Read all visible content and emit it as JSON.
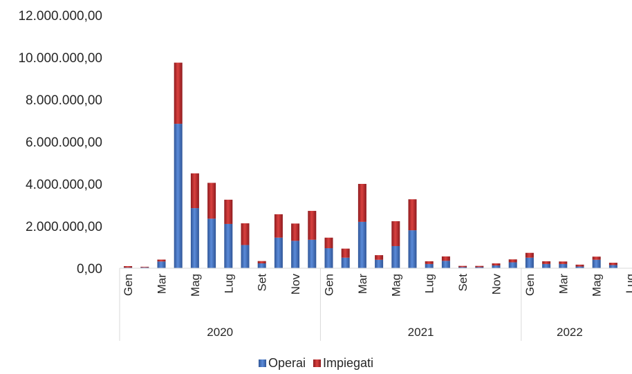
{
  "colors": {
    "operai": "#4472C4",
    "impiegati": "#C0272D"
  },
  "chart_data": {
    "type": "bar",
    "stacked": true,
    "title": "",
    "xlabel": "",
    "ylabel": "",
    "ylim": [
      0,
      12000000
    ],
    "yticks": [
      "0,00",
      "2.000.000,00",
      "4.000.000,00",
      "6.000.000,00",
      "8.000.000,00",
      "10.000.000,00",
      "12.000.000,00"
    ],
    "grid": false,
    "legend": "bottom",
    "months": [
      "Gen",
      "Feb",
      "Mar",
      "Apr",
      "Mag",
      "Giu",
      "Lug",
      "Ago",
      "Set",
      "Ott",
      "Nov",
      "Dic",
      "Gen",
      "Feb",
      "Mar",
      "Apr",
      "Mag",
      "Giu",
      "Lug",
      "Ago",
      "Set",
      "Ott",
      "Nov",
      "Dic",
      "Gen",
      "Feb",
      "Mar",
      "Apr",
      "Mag",
      "Giu",
      "Lug"
    ],
    "month_labels_shown": [
      "Gen",
      "",
      "Mar",
      "",
      "Mag",
      "",
      "Lug",
      "",
      "Set",
      "",
      "Nov",
      "",
      "Gen",
      "",
      "Mar",
      "",
      "Mag",
      "",
      "Lug",
      "",
      "Set",
      "",
      "Nov",
      "",
      "Gen",
      "",
      "Mar",
      "",
      "Mag",
      "",
      "Lug"
    ],
    "years": [
      {
        "label": "2020",
        "months": 12
      },
      {
        "label": "2021",
        "months": 12
      },
      {
        "label": "2022",
        "months": 7
      }
    ],
    "series": [
      {
        "name": "Operai",
        "values": [
          30000,
          40000,
          320000,
          6850000,
          2850000,
          2350000,
          2100000,
          1100000,
          230000,
          1450000,
          1300000,
          1350000,
          950000,
          500000,
          2200000,
          400000,
          1050000,
          1800000,
          200000,
          350000,
          50000,
          50000,
          130000,
          280000,
          500000,
          200000,
          200000,
          80000,
          400000,
          150000,
          0
        ]
      },
      {
        "name": "Impiegati",
        "values": [
          70000,
          30000,
          90000,
          2900000,
          1650000,
          1700000,
          1150000,
          1030000,
          110000,
          1110000,
          820000,
          1370000,
          500000,
          430000,
          1800000,
          220000,
          1180000,
          1470000,
          130000,
          210000,
          60000,
          60000,
          100000,
          140000,
          230000,
          130000,
          120000,
          90000,
          150000,
          110000,
          0
        ]
      }
    ]
  }
}
